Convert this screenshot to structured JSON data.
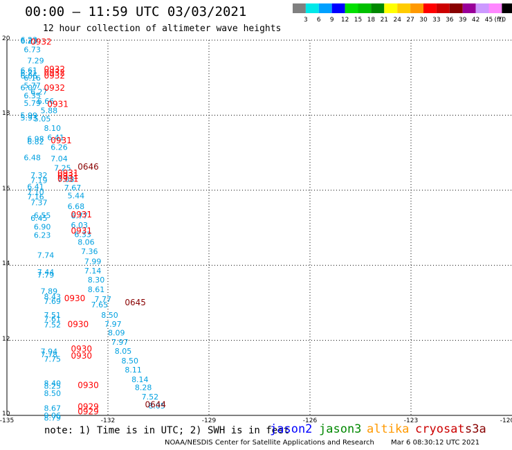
{
  "header": {
    "title": "00:00 – 11:59 UTC 03/03/2021",
    "subtitle": "12 hour collection of altimeter wave heights"
  },
  "colorbar": {
    "unit_label": "(ft)",
    "bins": [
      {
        "label": "3",
        "color": "#808080"
      },
      {
        "label": "6",
        "color": "#00e8e8"
      },
      {
        "label": "9",
        "color": "#00a0ff"
      },
      {
        "label": "12",
        "color": "#0000ff"
      },
      {
        "label": "15",
        "color": "#00e000"
      },
      {
        "label": "18",
        "color": "#00c000"
      },
      {
        "label": "21",
        "color": "#008800"
      },
      {
        "label": "24",
        "color": "#ffff00"
      },
      {
        "label": "27",
        "color": "#ffcc00"
      },
      {
        "label": "30",
        "color": "#ff9900"
      },
      {
        "label": "33",
        "color": "#ff0000"
      },
      {
        "label": "36",
        "color": "#cc0000"
      },
      {
        "label": "39",
        "color": "#880000"
      },
      {
        "label": "42",
        "color": "#990099"
      },
      {
        "label": "45",
        "color": "#cc99ff"
      },
      {
        "label": "70",
        "color": "#ff88ff"
      },
      {
        "label": "",
        "color": "#000000"
      }
    ]
  },
  "map": {
    "lon_range": [
      -135,
      -120
    ],
    "lat_range": [
      10,
      20
    ],
    "x_ticks": [
      "-135",
      "-132",
      "-129",
      "-126",
      "-123",
      "-120"
    ],
    "x_tick_values": [
      -135,
      -132,
      -129,
      -126,
      -123,
      -120
    ],
    "y_ticks": [
      "20",
      "18",
      "16",
      "14",
      "12",
      "10"
    ],
    "y_tick_values": [
      20,
      18,
      16,
      14,
      12,
      10
    ],
    "grid": true
  },
  "chart_data": {
    "type": "scatter",
    "title": "12 hour collection of altimeter wave heights",
    "xlabel": "",
    "ylabel": "",
    "xlim": [
      -135,
      -120
    ],
    "ylim": [
      10,
      20
    ],
    "grid": true,
    "wave_heights": [
      {
        "lon": -134.6,
        "lat": 19.94,
        "text": "6.23"
      },
      {
        "lon": -134.6,
        "lat": 19.91,
        "text": "6.23"
      },
      {
        "lon": -134.5,
        "lat": 19.68,
        "text": "6.73"
      },
      {
        "lon": -134.4,
        "lat": 19.38,
        "text": "7.29"
      },
      {
        "lon": -134.6,
        "lat": 19.12,
        "text": "6.61"
      },
      {
        "lon": -134.6,
        "lat": 19.05,
        "text": "6.21"
      },
      {
        "lon": -134.6,
        "lat": 18.98,
        "text": "6.86"
      },
      {
        "lon": -134.5,
        "lat": 18.92,
        "text": "6.16"
      },
      {
        "lon": -134.5,
        "lat": 18.72,
        "text": "5.77"
      },
      {
        "lon": -134.6,
        "lat": 18.66,
        "text": "6.07"
      },
      {
        "lon": -134.3,
        "lat": 18.55,
        "text": "6.27"
      },
      {
        "lon": -134.5,
        "lat": 18.45,
        "text": "6.35"
      },
      {
        "lon": -134.1,
        "lat": 18.3,
        "text": "6.66"
      },
      {
        "lon": -134.5,
        "lat": 18.25,
        "text": "5.79"
      },
      {
        "lon": -134.0,
        "lat": 18.05,
        "text": "5.88"
      },
      {
        "lon": -134.6,
        "lat": 17.92,
        "text": "5.99"
      },
      {
        "lon": -134.6,
        "lat": 17.86,
        "text": "5.93"
      },
      {
        "lon": -134.2,
        "lat": 17.83,
        "text": "5.05"
      },
      {
        "lon": -133.9,
        "lat": 17.58,
        "text": "8.10"
      },
      {
        "lon": -133.8,
        "lat": 17.33,
        "text": "6.41"
      },
      {
        "lon": -134.4,
        "lat": 17.3,
        "text": "6.98"
      },
      {
        "lon": -134.4,
        "lat": 17.22,
        "text": "6.82"
      },
      {
        "lon": -133.7,
        "lat": 17.08,
        "text": "6.26"
      },
      {
        "lon": -134.5,
        "lat": 16.8,
        "text": "6.48"
      },
      {
        "lon": -133.7,
        "lat": 16.77,
        "text": "7.04"
      },
      {
        "lon": -133.6,
        "lat": 16.52,
        "text": "7.25"
      },
      {
        "lon": -134.3,
        "lat": 16.33,
        "text": "7.32"
      },
      {
        "lon": -133.5,
        "lat": 16.22,
        "text": "7.08"
      },
      {
        "lon": -134.3,
        "lat": 16.19,
        "text": "7.19"
      },
      {
        "lon": -134.4,
        "lat": 16.02,
        "text": "6.41"
      },
      {
        "lon": -133.3,
        "lat": 16.0,
        "text": "7.67"
      },
      {
        "lon": -134.4,
        "lat": 15.88,
        "text": "7.10"
      },
      {
        "lon": -133.2,
        "lat": 15.78,
        "text": "5.44"
      },
      {
        "lon": -134.4,
        "lat": 15.76,
        "text": "7.16"
      },
      {
        "lon": -134.3,
        "lat": 15.6,
        "text": "7.37"
      },
      {
        "lon": -133.2,
        "lat": 15.5,
        "text": "6.68"
      },
      {
        "lon": -134.2,
        "lat": 15.26,
        "text": "6.55"
      },
      {
        "lon": -133.1,
        "lat": 15.25,
        "text": "6.77"
      },
      {
        "lon": -134.3,
        "lat": 15.18,
        "text": "6.45"
      },
      {
        "lon": -133.1,
        "lat": 15.0,
        "text": "6.03"
      },
      {
        "lon": -134.2,
        "lat": 14.95,
        "text": "6.90"
      },
      {
        "lon": -133.0,
        "lat": 14.75,
        "text": "6.33"
      },
      {
        "lon": -134.2,
        "lat": 14.73,
        "text": "6.23"
      },
      {
        "lon": -132.9,
        "lat": 14.55,
        "text": "8.06"
      },
      {
        "lon": -132.8,
        "lat": 14.3,
        "text": "7.36"
      },
      {
        "lon": -134.1,
        "lat": 14.2,
        "text": "7.74"
      },
      {
        "lon": -132.7,
        "lat": 14.03,
        "text": "7.99"
      },
      {
        "lon": -132.7,
        "lat": 13.78,
        "text": "7.14"
      },
      {
        "lon": -134.1,
        "lat": 13.75,
        "text": "7.44"
      },
      {
        "lon": -134.1,
        "lat": 13.67,
        "text": "7.79"
      },
      {
        "lon": -132.6,
        "lat": 13.54,
        "text": "8.30"
      },
      {
        "lon": -132.6,
        "lat": 13.28,
        "text": "8.61"
      },
      {
        "lon": -134.0,
        "lat": 13.24,
        "text": "7.89"
      },
      {
        "lon": -133.9,
        "lat": 13.09,
        "text": "8.43"
      },
      {
        "lon": -132.4,
        "lat": 13.03,
        "text": "7.77"
      },
      {
        "lon": -133.9,
        "lat": 12.97,
        "text": "7.69"
      },
      {
        "lon": -132.5,
        "lat": 12.88,
        "text": "7.65"
      },
      {
        "lon": -133.9,
        "lat": 12.6,
        "text": "7.51"
      },
      {
        "lon": -132.2,
        "lat": 12.6,
        "text": "8.50"
      },
      {
        "lon": -133.9,
        "lat": 12.5,
        "text": "7.61"
      },
      {
        "lon": -132.1,
        "lat": 12.36,
        "text": "7.97"
      },
      {
        "lon": -133.9,
        "lat": 12.34,
        "text": "7.52"
      },
      {
        "lon": -132.0,
        "lat": 12.13,
        "text": "8.09"
      },
      {
        "lon": -131.9,
        "lat": 11.88,
        "text": "7.97"
      },
      {
        "lon": -134.0,
        "lat": 11.63,
        "text": "7.94"
      },
      {
        "lon": -131.8,
        "lat": 11.64,
        "text": "8.05"
      },
      {
        "lon": -134.0,
        "lat": 11.55,
        "text": "7.78"
      },
      {
        "lon": -133.9,
        "lat": 11.43,
        "text": "7.75"
      },
      {
        "lon": -131.6,
        "lat": 11.38,
        "text": "8.50"
      },
      {
        "lon": -131.5,
        "lat": 11.14,
        "text": "8.11"
      },
      {
        "lon": -131.3,
        "lat": 10.89,
        "text": "8.14"
      },
      {
        "lon": -133.9,
        "lat": 10.78,
        "text": "8.40"
      },
      {
        "lon": -133.9,
        "lat": 10.71,
        "text": "8.25"
      },
      {
        "lon": -131.2,
        "lat": 10.67,
        "text": "8.28"
      },
      {
        "lon": -133.9,
        "lat": 10.52,
        "text": "8.50"
      },
      {
        "lon": -131.0,
        "lat": 10.42,
        "text": "7.52"
      },
      {
        "lon": -130.8,
        "lat": 10.18,
        "text": "8.05"
      },
      {
        "lon": -133.9,
        "lat": 10.12,
        "text": "8.67"
      },
      {
        "lon": -133.9,
        "lat": 9.93,
        "text": "9.06"
      },
      {
        "lon": -133.9,
        "lat": 9.86,
        "text": "8.79"
      }
    ],
    "time_labels": [
      {
        "lon": -134.3,
        "lat": 19.88,
        "text": "0932",
        "color": "#ff0000"
      },
      {
        "lon": -133.9,
        "lat": 19.15,
        "text": "0932",
        "color": "#ff0000"
      },
      {
        "lon": -133.9,
        "lat": 19.06,
        "text": "0932",
        "color": "#ff0000"
      },
      {
        "lon": -133.9,
        "lat": 18.98,
        "text": "0932",
        "color": "#ff0000"
      },
      {
        "lon": -133.9,
        "lat": 18.65,
        "text": "0932",
        "color": "#ff0000"
      },
      {
        "lon": -133.8,
        "lat": 18.22,
        "text": "0931",
        "color": "#ff0000"
      },
      {
        "lon": -133.7,
        "lat": 17.25,
        "text": "0931",
        "color": "#ff0000"
      },
      {
        "lon": -132.9,
        "lat": 16.55,
        "text": "0646",
        "color": "#880000"
      },
      {
        "lon": -133.5,
        "lat": 16.38,
        "text": "0931",
        "color": "#ff0000"
      },
      {
        "lon": -133.5,
        "lat": 16.31,
        "text": "0931",
        "color": "#ff0000"
      },
      {
        "lon": -133.5,
        "lat": 16.23,
        "text": "0931",
        "color": "#ff0000"
      },
      {
        "lon": -133.1,
        "lat": 15.28,
        "text": "0931",
        "color": "#ff0000"
      },
      {
        "lon": -133.1,
        "lat": 14.84,
        "text": "0931",
        "color": "#ff0000"
      },
      {
        "lon": -131.5,
        "lat": 12.93,
        "text": "0645",
        "color": "#880000"
      },
      {
        "lon": -133.3,
        "lat": 13.04,
        "text": "0930",
        "color": "#ff0000"
      },
      {
        "lon": -133.2,
        "lat": 12.35,
        "text": "0930",
        "color": "#ff0000"
      },
      {
        "lon": -133.1,
        "lat": 11.7,
        "text": "0930",
        "color": "#ff0000"
      },
      {
        "lon": -133.1,
        "lat": 11.51,
        "text": "0930",
        "color": "#ff0000"
      },
      {
        "lon": -132.9,
        "lat": 10.73,
        "text": "0930",
        "color": "#ff0000"
      },
      {
        "lon": -132.9,
        "lat": 10.16,
        "text": "0929",
        "color": "#ff0000"
      },
      {
        "lon": -132.9,
        "lat": 10.03,
        "text": "0929",
        "color": "#ff0000"
      },
      {
        "lon": -130.9,
        "lat": 10.21,
        "text": "0644",
        "color": "#880000"
      }
    ]
  },
  "footer": {
    "note": "note: 1) Time is in UTC; 2) SWH is in feet",
    "satellites": [
      {
        "name": "jason2",
        "color": "#0000ff"
      },
      {
        "name": "jason3",
        "color": "#008800"
      },
      {
        "name": "altika",
        "color": "#ff9900"
      },
      {
        "name": "cryosat",
        "color": "#cc0000"
      },
      {
        "name": "s3a",
        "color": "#880000"
      }
    ],
    "credit": "NOAA/NESDIS Center for Satellite Applications and Research",
    "timestamp": "Mar  6 08:30:12 UTC 2021"
  }
}
